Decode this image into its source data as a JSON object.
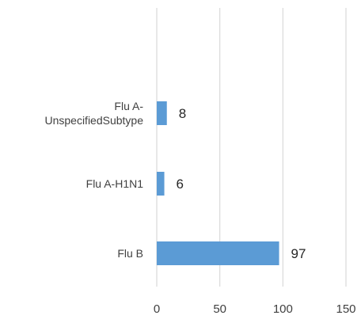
{
  "chart_data": {
    "type": "bar",
    "orientation": "horizontal",
    "title": "",
    "xlabel": "",
    "ylabel": "",
    "categories": [
      [
        "Flu A-",
        "UnspecifiedSubtype"
      ],
      [
        "Flu A-H1N1"
      ],
      [
        "Flu B"
      ]
    ],
    "series": [
      {
        "values": [
          8,
          6,
          97
        ],
        "color": "#5b9bd5"
      }
    ],
    "data_labels": [
      "8",
      "6",
      "97"
    ],
    "xlim": [
      0,
      150
    ],
    "xticks": [
      0,
      50,
      100,
      150
    ],
    "xtick_labels": [
      "0",
      "50",
      "100",
      "150"
    ],
    "grid": "vertical",
    "legend": "none"
  }
}
